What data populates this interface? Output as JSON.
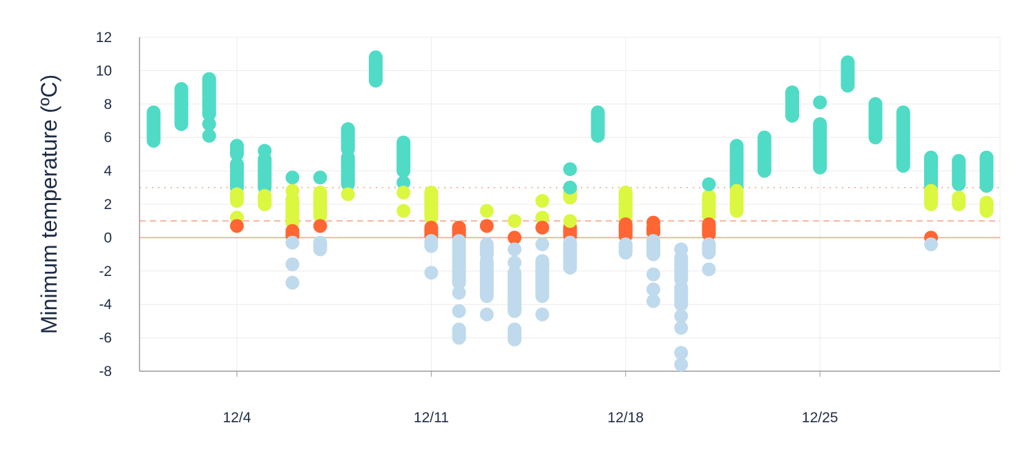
{
  "colors": {
    "above_3": "#50dbc6",
    "between_1_3": "#dcf73f",
    "between_0_1": "#ff6633",
    "below_0": "#bfdaed",
    "grid": "#ececec",
    "axis": "#9a9a9a",
    "ref_zero": "#f6a68a",
    "ref_one": "#f6a68a",
    "ref_three": "#f6a68a",
    "text": "#1d2b44"
  },
  "chart_data": {
    "type": "scatter",
    "title": "",
    "xlabel": "",
    "ylabel": "Minimum temperature (ºC)",
    "ylim": [
      -8,
      12
    ],
    "xlim": [
      0.5,
      31.5
    ],
    "y_ticks": [
      "12",
      "10",
      "8",
      "6",
      "4",
      "2",
      "0",
      "-2",
      "-4",
      "-6",
      "-8"
    ],
    "y_tick_values": [
      12,
      10,
      8,
      6,
      4,
      2,
      0,
      -2,
      -4,
      -6,
      -8
    ],
    "x_ticks": [
      {
        "day": 4,
        "label": "12/4"
      },
      {
        "day": 11,
        "label": "12/11"
      },
      {
        "day": 18,
        "label": "12/18"
      },
      {
        "day": 25,
        "label": "12/25"
      }
    ],
    "grid": true,
    "reference_lines": [
      {
        "y": 0,
        "style": "solid"
      },
      {
        "y": 1,
        "style": "dashed"
      },
      {
        "y": 3,
        "style": "dotted"
      }
    ],
    "days": [
      {
        "day": 1,
        "segments": [
          [
            5.8,
            7.5
          ]
        ],
        "points": []
      },
      {
        "day": 2,
        "segments": [
          [
            6.8,
            8.9
          ]
        ],
        "points": []
      },
      {
        "day": 3,
        "segments": [
          [
            7.4,
            9.5
          ]
        ],
        "points": [
          6.8,
          6.1
        ]
      },
      {
        "day": 4,
        "segments": [
          [
            5.0,
            5.5
          ],
          [
            3.0,
            4.4
          ],
          [
            2.2,
            2.6
          ]
        ],
        "points": [
          1.2,
          0.7
        ]
      },
      {
        "day": 5,
        "segments": [
          [
            3.0,
            4.7
          ],
          [
            2.0,
            2.5
          ]
        ],
        "points": [
          5.2
        ]
      },
      {
        "day": 6,
        "segments": [
          [
            0.9,
            2.3
          ],
          [
            0.1,
            0.4
          ]
        ],
        "points": [
          3.6,
          2.8,
          -0.3,
          -1.6,
          -2.7
        ]
      },
      {
        "day": 7,
        "segments": [
          [
            1.3,
            2.7
          ],
          [
            -0.7,
            -0.3
          ]
        ],
        "points": [
          3.6,
          0.7
        ]
      },
      {
        "day": 8,
        "segments": [
          [
            5.3,
            6.5
          ],
          [
            3.2,
            4.8
          ]
        ],
        "points": [
          2.6
        ]
      },
      {
        "day": 9,
        "segments": [
          [
            9.4,
            10.8
          ]
        ],
        "points": []
      },
      {
        "day": 10,
        "segments": [
          [
            4.0,
            5.7
          ]
        ],
        "points": [
          3.3,
          2.7,
          1.6
        ]
      },
      {
        "day": 11,
        "segments": [
          [
            1.2,
            2.7
          ],
          [
            0.1,
            0.6
          ],
          [
            -0.5,
            -0.2
          ]
        ],
        "points": [
          -2.1
        ]
      },
      {
        "day": 12,
        "segments": [
          [
            0.1,
            0.6
          ],
          [
            -2.7,
            -0.2
          ],
          [
            -6.0,
            -5.5
          ]
        ],
        "points": [
          -3.3,
          -4.4
        ]
      },
      {
        "day": 13,
        "segments": [
          [
            -3.5,
            -1.4
          ],
          [
            -1.0,
            -0.4
          ]
        ],
        "points": [
          1.6,
          0.7,
          -4.6
        ]
      },
      {
        "day": 14,
        "segments": [
          [
            -4.4,
            -2.1
          ],
          [
            -6.1,
            -5.5
          ]
        ],
        "points": [
          1.0,
          0.0,
          -0.7,
          -1.5
        ]
      },
      {
        "day": 15,
        "segments": [
          [
            -3.5,
            -1.4
          ]
        ],
        "points": [
          2.2,
          1.2,
          0.6,
          -0.4,
          -4.6
        ]
      },
      {
        "day": 16,
        "segments": [
          [
            2.4,
            2.8
          ],
          [
            0.1,
            0.6
          ],
          [
            -1.8,
            -0.3
          ]
        ],
        "points": [
          4.1,
          3.0,
          1.0
        ]
      },
      {
        "day": 17,
        "segments": [
          [
            6.1,
            7.5
          ]
        ],
        "points": []
      },
      {
        "day": 18,
        "segments": [
          [
            1.2,
            2.7
          ],
          [
            0.1,
            0.8
          ],
          [
            -0.9,
            -0.4
          ]
        ],
        "points": []
      },
      {
        "day": 19,
        "segments": [
          [
            0.3,
            0.6
          ],
          [
            -1.0,
            -0.2
          ]
        ],
        "points": [
          0.9,
          -2.2,
          -3.1,
          -3.8
        ]
      },
      {
        "day": 20,
        "segments": [
          [
            -2.5,
            -1.2
          ],
          [
            -4.0,
            -3.0
          ]
        ],
        "points": [
          -0.7,
          -4.7,
          -5.4,
          -6.9,
          -7.6
        ]
      },
      {
        "day": 21,
        "segments": [
          [
            1.3,
            2.5
          ],
          [
            0.2,
            0.8
          ],
          [
            -0.9,
            -0.4
          ]
        ],
        "points": [
          3.2,
          -1.9
        ]
      },
      {
        "day": 22,
        "segments": [
          [
            3.0,
            5.5
          ],
          [
            1.6,
            2.8
          ]
        ],
        "points": []
      },
      {
        "day": 23,
        "segments": [
          [
            4.0,
            6.0
          ]
        ],
        "points": []
      },
      {
        "day": 24,
        "segments": [
          [
            7.3,
            8.7
          ]
        ],
        "points": []
      },
      {
        "day": 25,
        "segments": [
          [
            4.2,
            6.8
          ]
        ],
        "points": [
          8.1
        ]
      },
      {
        "day": 26,
        "segments": [
          [
            9.1,
            10.5
          ]
        ],
        "points": []
      },
      {
        "day": 27,
        "segments": [
          [
            6.0,
            8.0
          ]
        ],
        "points": []
      },
      {
        "day": 28,
        "segments": [
          [
            4.3,
            7.5
          ]
        ],
        "points": []
      },
      {
        "day": 29,
        "segments": [
          [
            3.0,
            4.8
          ],
          [
            2.0,
            2.8
          ]
        ],
        "points": [
          0.0,
          -0.4
        ]
      },
      {
        "day": 30,
        "segments": [
          [
            3.2,
            4.6
          ],
          [
            2.0,
            2.4
          ]
        ],
        "points": []
      },
      {
        "day": 31,
        "segments": [
          [
            3.1,
            4.8
          ],
          [
            1.6,
            2.1
          ]
        ],
        "points": []
      }
    ]
  }
}
